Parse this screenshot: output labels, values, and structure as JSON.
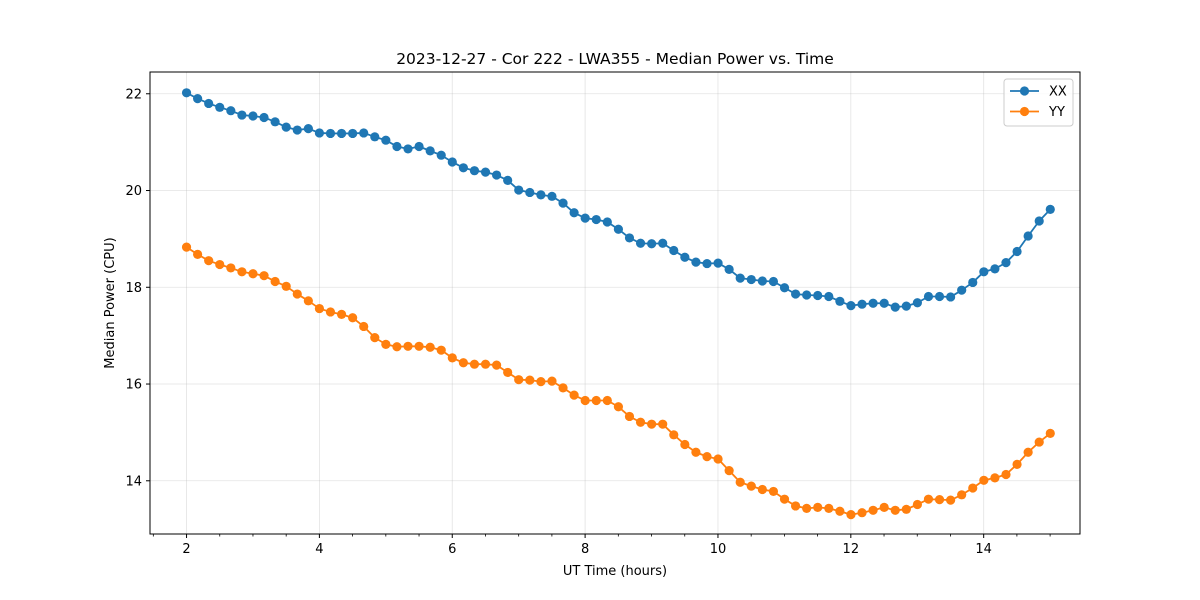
{
  "chart_data": {
    "type": "line",
    "title": "2023-12-27 - Cor 222 - LWA355 - Median Power vs. Time",
    "xlabel": "UT Time (hours)",
    "ylabel": "Median Power (CPU)",
    "xlim": [
      1.45,
      15.45
    ],
    "ylim": [
      12.9,
      22.45
    ],
    "xticks": [
      2,
      4,
      6,
      8,
      10,
      12,
      14
    ],
    "yticks": [
      14,
      16,
      18,
      20,
      22
    ],
    "x_minor_step": 0.5,
    "grid": true,
    "legend_position": "top-right",
    "x_start": 2.0,
    "x_step": 0.1667,
    "series": [
      {
        "name": "XX",
        "color": "#1f77b4",
        "values": [
          22.02,
          21.9,
          21.8,
          21.72,
          21.65,
          21.56,
          21.54,
          21.51,
          21.42,
          21.31,
          21.25,
          21.28,
          21.19,
          21.18,
          21.18,
          21.18,
          21.19,
          21.11,
          21.04,
          20.91,
          20.86,
          20.91,
          20.82,
          20.73,
          20.59,
          20.47,
          20.41,
          20.38,
          20.32,
          20.21,
          20.01,
          19.96,
          19.91,
          19.88,
          19.74,
          19.54,
          19.43,
          19.4,
          19.35,
          19.2,
          19.02,
          18.91,
          18.9,
          18.91,
          18.76,
          18.62,
          18.52,
          18.49,
          18.5,
          18.37,
          18.19,
          18.16,
          18.13,
          18.12,
          17.99,
          17.86,
          17.84,
          17.83,
          17.81,
          17.71,
          17.62,
          17.65,
          17.67,
          17.67,
          17.59,
          17.61,
          17.68,
          17.81,
          17.81,
          17.8,
          17.94,
          18.1,
          18.32,
          18.38,
          18.51,
          18.74,
          19.06,
          19.37,
          19.61
        ]
      },
      {
        "name": "YY",
        "color": "#ff7f0e",
        "values": [
          18.83,
          18.68,
          18.55,
          18.47,
          18.4,
          18.32,
          18.28,
          18.24,
          18.12,
          18.02,
          17.86,
          17.72,
          17.56,
          17.49,
          17.44,
          17.37,
          17.19,
          16.96,
          16.82,
          16.77,
          16.78,
          16.78,
          16.76,
          16.7,
          16.54,
          16.44,
          16.41,
          16.41,
          16.39,
          16.24,
          16.09,
          16.08,
          16.05,
          16.06,
          15.92,
          15.77,
          15.66,
          15.66,
          15.66,
          15.53,
          15.33,
          15.21,
          15.17,
          15.17,
          14.95,
          14.75,
          14.59,
          14.5,
          14.45,
          14.21,
          13.97,
          13.89,
          13.82,
          13.78,
          13.62,
          13.48,
          13.43,
          13.45,
          13.43,
          13.37,
          13.3,
          13.34,
          13.39,
          13.45,
          13.39,
          13.41,
          13.51,
          13.62,
          13.61,
          13.6,
          13.71,
          13.85,
          14.01,
          14.06,
          14.13,
          14.34,
          14.59,
          14.8,
          14.98
        ]
      }
    ]
  }
}
